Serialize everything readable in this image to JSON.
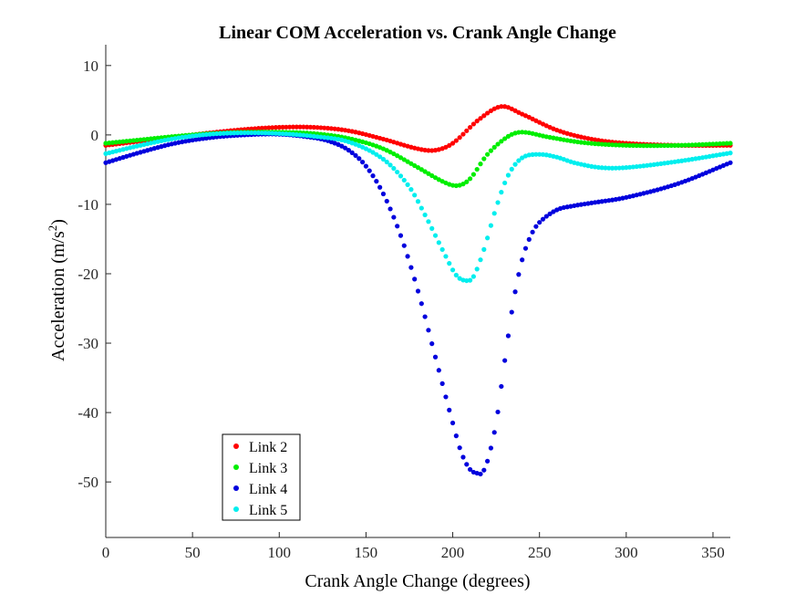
{
  "chart_data": {
    "type": "scatter",
    "title": "Linear COM Acceleration vs. Crank Angle Change",
    "xlabel": "Crank Angle Change (degrees)",
    "ylabel_main": "Acceleration (m/s",
    "ylabel_sup": "2",
    "ylabel_end": ")",
    "xlim": [
      0,
      360
    ],
    "ylim": [
      -58,
      13
    ],
    "xticks": [
      0,
      50,
      100,
      150,
      200,
      250,
      300,
      350
    ],
    "yticks": [
      10,
      0,
      -10,
      -20,
      -30,
      -40,
      -50
    ],
    "xtick_labels": [
      "0",
      "50",
      "100",
      "150",
      "200",
      "250",
      "300",
      "350"
    ],
    "ytick_labels": [
      "10",
      "0",
      "-10",
      "-20",
      "-30",
      "-40",
      "-50"
    ],
    "grid": false,
    "legend_position": "bottom-left",
    "sample_step_degrees": 2,
    "series": [
      {
        "name": "Link 2",
        "color": "#ff0000",
        "x": [
          0,
          20,
          40,
          60,
          80,
          100,
          120,
          140,
          160,
          180,
          190,
          200,
          215,
          228,
          240,
          260,
          280,
          300,
          330,
          360
        ],
        "y": [
          -1.5,
          -0.9,
          -0.3,
          0.3,
          0.8,
          1.1,
          1.1,
          0.6,
          -0.6,
          -2.0,
          -2.2,
          -1.2,
          2.2,
          4.1,
          3.0,
          0.7,
          -0.6,
          -1.2,
          -1.5,
          -1.5
        ]
      },
      {
        "name": "Link 3",
        "color": "#00ee00",
        "x": [
          0,
          20,
          40,
          60,
          80,
          100,
          120,
          140,
          160,
          180,
          195,
          203,
          210,
          220,
          232,
          240,
          255,
          275,
          300,
          330,
          360
        ],
        "y": [
          -1.2,
          -0.7,
          -0.2,
          0.2,
          0.4,
          0.4,
          0.2,
          -0.5,
          -2.0,
          -4.7,
          -6.8,
          -7.3,
          -6.3,
          -2.8,
          -0.2,
          0.4,
          -0.3,
          -1.1,
          -1.5,
          -1.5,
          -1.2
        ]
      },
      {
        "name": "Link 4",
        "color": "#0000dd",
        "x": [
          0,
          20,
          40,
          60,
          80,
          100,
          120,
          130,
          140,
          150,
          160,
          170,
          180,
          190,
          200,
          205,
          210,
          215,
          217,
          220,
          225,
          230,
          235,
          240,
          245,
          250,
          260,
          270,
          280,
          300,
          330,
          360
        ],
        "y": [
          -4.0,
          -2.5,
          -1.2,
          -0.4,
          0.0,
          0.1,
          -0.4,
          -1.0,
          -2.2,
          -4.5,
          -8.5,
          -14.5,
          -22.5,
          -32.0,
          -41.5,
          -45.8,
          -48.2,
          -48.8,
          -48.7,
          -47.0,
          -41.5,
          -32.5,
          -24.0,
          -18.0,
          -14.5,
          -12.6,
          -10.8,
          -10.2,
          -9.8,
          -9.0,
          -7.0,
          -4.0
        ]
      },
      {
        "name": "Link 5",
        "color": "#00eeee",
        "x": [
          0,
          20,
          40,
          60,
          80,
          100,
          120,
          140,
          160,
          175,
          185,
          195,
          202,
          208,
          212,
          218,
          225,
          232,
          240,
          250,
          260,
          270,
          285,
          300,
          330,
          360
        ],
        "y": [
          -2.7,
          -1.5,
          -0.5,
          0.1,
          0.3,
          0.2,
          -0.2,
          -1.0,
          -3.5,
          -7.5,
          -12.0,
          -17.0,
          -20.2,
          -21.0,
          -20.4,
          -16.5,
          -10.5,
          -5.8,
          -3.3,
          -2.8,
          -3.2,
          -4.0,
          -4.7,
          -4.7,
          -3.8,
          -2.6
        ]
      }
    ]
  }
}
